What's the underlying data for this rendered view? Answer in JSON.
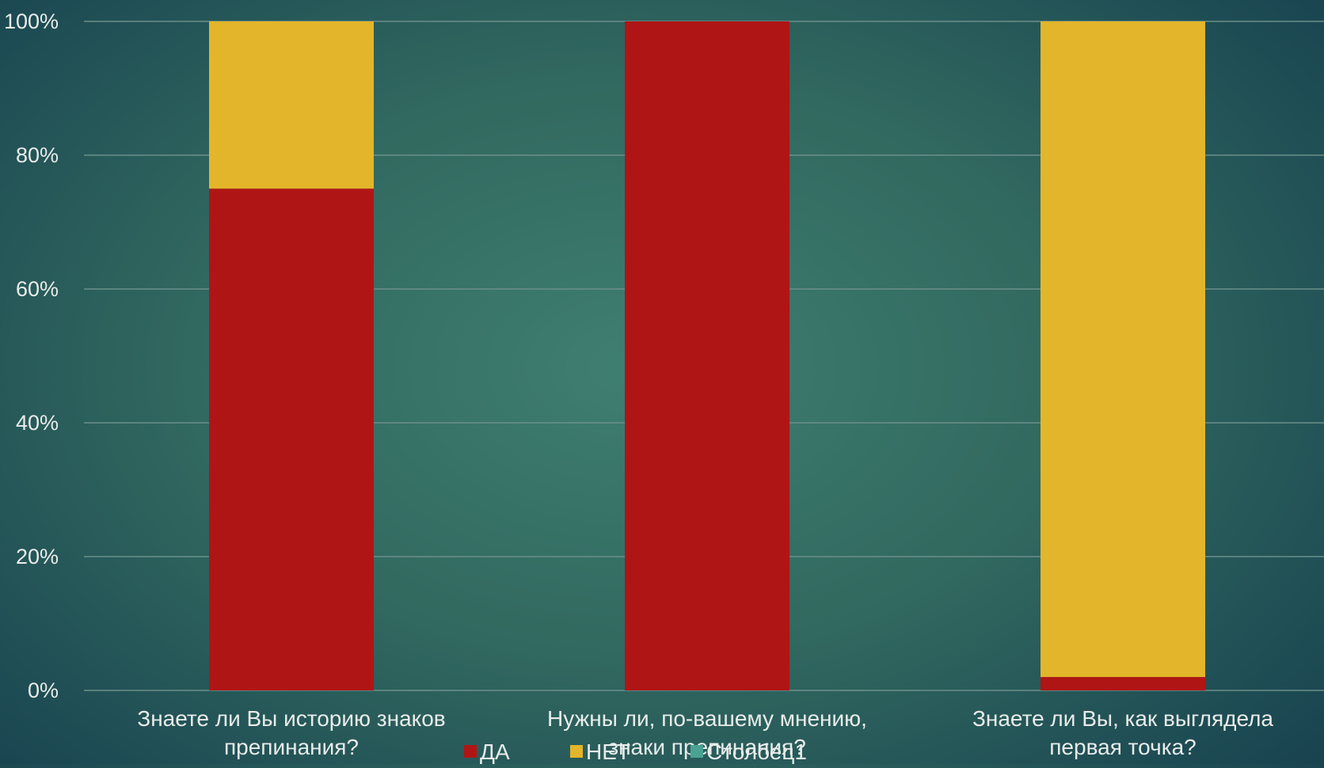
{
  "chart_data": {
    "type": "bar",
    "stacked": "percent",
    "categories": [
      [
        "Знаете ли Вы историю знаков",
        "препинания?"
      ],
      [
        "Нужны ли, по-вашему мнению,",
        "знаки препинания?"
      ],
      [
        "Знаете ли Вы, как выглядела",
        "первая точка?"
      ]
    ],
    "series": [
      {
        "name": "ДА",
        "color": "#b01515",
        "values": [
          75,
          100,
          2
        ]
      },
      {
        "name": "НЕТ",
        "color": "#e3b52a",
        "values": [
          25,
          0,
          98
        ]
      },
      {
        "name": "Столбец1",
        "color": "#4aa293",
        "values": [
          0,
          0,
          0
        ]
      }
    ],
    "y_ticks": [
      "0%",
      "20%",
      "40%",
      "60%",
      "80%",
      "100%"
    ],
    "ylim": [
      0,
      100
    ],
    "grid": true,
    "legend_position": "bottom",
    "colors": {
      "gridline": "#6b8f8a",
      "text": "#e8ecea"
    }
  }
}
